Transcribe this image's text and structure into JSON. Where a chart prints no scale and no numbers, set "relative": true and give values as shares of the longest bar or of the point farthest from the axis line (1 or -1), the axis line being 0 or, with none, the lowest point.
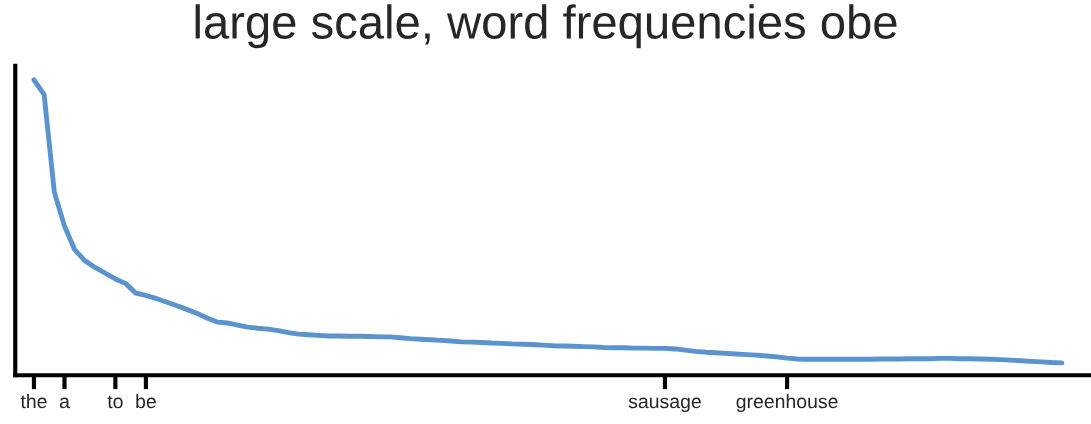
{
  "chart_data": {
    "type": "line",
    "title": "large scale, word frequencies obe",
    "relative": true,
    "categories": [
      "the",
      null,
      null,
      "a",
      null,
      null,
      null,
      null,
      "to",
      null,
      null,
      "be",
      null,
      null,
      null,
      null,
      null,
      null,
      null,
      null,
      null,
      null,
      null,
      null,
      null,
      null,
      null,
      null,
      null,
      null,
      null,
      null,
      null,
      null,
      null,
      null,
      null,
      null,
      null,
      null,
      null,
      null,
      null,
      null,
      null,
      null,
      null,
      null,
      null,
      null,
      null,
      null,
      null,
      null,
      null,
      null,
      null,
      null,
      null,
      null,
      null,
      null,
      "sausage",
      null,
      null,
      null,
      null,
      null,
      null,
      null,
      null,
      null,
      null,
      null,
      "greenhouse",
      null,
      null,
      null,
      null,
      null,
      null,
      null,
      null,
      null,
      null,
      null,
      null,
      null,
      null,
      null,
      null,
      null,
      null,
      null,
      null,
      null,
      null,
      null,
      null,
      null,
      null,
      null
    ],
    "series": [
      {
        "color": "#5b93cf",
        "values": [
          1.0,
          0.95,
          0.62,
          0.505,
          0.425,
          0.388,
          0.365,
          0.346,
          0.326,
          0.311,
          0.278,
          0.27,
          0.26,
          0.248,
          0.236,
          0.223,
          0.21,
          0.194,
          0.18,
          0.177,
          0.17,
          0.163,
          0.159,
          0.156,
          0.151,
          0.144,
          0.139,
          0.137,
          0.135,
          0.133,
          0.133,
          0.132,
          0.132,
          0.131,
          0.13,
          0.13,
          0.127,
          0.124,
          0.122,
          0.12,
          0.118,
          0.116,
          0.113,
          0.112,
          0.111,
          0.109,
          0.108,
          0.106,
          0.105,
          0.104,
          0.102,
          0.1,
          0.099,
          0.098,
          0.097,
          0.096,
          0.094,
          0.093,
          0.093,
          0.092,
          0.092,
          0.091,
          0.091,
          0.089,
          0.085,
          0.081,
          0.078,
          0.076,
          0.074,
          0.072,
          0.07,
          0.068,
          0.065,
          0.062,
          0.058,
          0.055,
          0.054,
          0.054,
          0.054,
          0.054,
          0.054,
          0.054,
          0.054,
          0.055,
          0.055,
          0.055,
          0.056,
          0.056,
          0.056,
          0.057,
          0.057,
          0.056,
          0.056,
          0.055,
          0.054,
          0.053,
          0.051,
          0.049,
          0.047,
          0.045,
          0.043,
          0.042
        ]
      }
    ],
    "grid": false,
    "legend": false
  }
}
